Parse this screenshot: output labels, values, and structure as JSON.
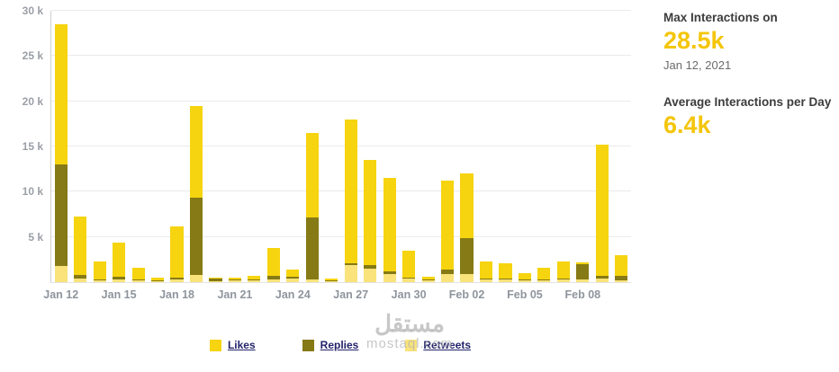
{
  "stats": {
    "max_label": "Max Interactions on",
    "max_value": "28.5k",
    "max_date": "Jan 12, 2021",
    "avg_label": "Average Interactions per Day",
    "avg_value": "6.4k",
    "accent_color": "#F4C50B"
  },
  "watermark": {
    "line1": "مستقل",
    "line2": "mostaql.com"
  },
  "chart_data": {
    "type": "bar",
    "stacked": true,
    "title": "",
    "xlabel": "",
    "ylabel": "",
    "ylim": [
      0,
      30000
    ],
    "yticks": [
      5000,
      10000,
      15000,
      20000,
      25000,
      30000
    ],
    "ytick_suffix": " k",
    "grid": true,
    "legend_position": "bottom",
    "xtick_every": 3,
    "categories": [
      "Jan 12",
      "Jan 13",
      "Jan 14",
      "Jan 15",
      "Jan 16",
      "Jan 17",
      "Jan 18",
      "Jan 19",
      "Jan 20",
      "Jan 21",
      "Jan 22",
      "Jan 23",
      "Jan 24",
      "Jan 25",
      "Jan 26",
      "Jan 27",
      "Jan 28",
      "Jan 29",
      "Jan 30",
      "Jan 31",
      "Feb 01",
      "Feb 02",
      "Feb 03",
      "Feb 04",
      "Feb 05",
      "Feb 06",
      "Feb 07",
      "Feb 08",
      "Feb 09",
      "Feb 10"
    ],
    "series": [
      {
        "name": "Retweets",
        "color": "#F9E37A",
        "values": [
          1800,
          400,
          200,
          300,
          200,
          100,
          300,
          800,
          100,
          200,
          200,
          300,
          400,
          300,
          100,
          1900,
          1500,
          900,
          400,
          200,
          900,
          900,
          300,
          300,
          200,
          200,
          300,
          300,
          400,
          200
        ]
      },
      {
        "name": "Replies",
        "color": "#857A15",
        "values": [
          11200,
          400,
          100,
          300,
          100,
          100,
          200,
          8500,
          300,
          100,
          100,
          400,
          200,
          6900,
          100,
          200,
          400,
          300,
          100,
          100,
          500,
          4000,
          100,
          100,
          100,
          100,
          100,
          1700,
          300,
          500
        ]
      },
      {
        "name": "Likes",
        "color": "#F6D40F",
        "values": [
          15500,
          6500,
          2000,
          3800,
          1300,
          300,
          5700,
          10200,
          100,
          200,
          400,
          3100,
          800,
          9300,
          200,
          15900,
          11600,
          10300,
          3000,
          300,
          9800,
          7100,
          1900,
          1700,
          700,
          1300,
          1900,
          200,
          14500,
          2300
        ]
      }
    ],
    "legend": [
      {
        "label": "Likes",
        "color": "#F6D40F"
      },
      {
        "label": "Replies",
        "color": "#857A15"
      },
      {
        "label": "Retweets",
        "color": "#F9E37A"
      }
    ]
  }
}
